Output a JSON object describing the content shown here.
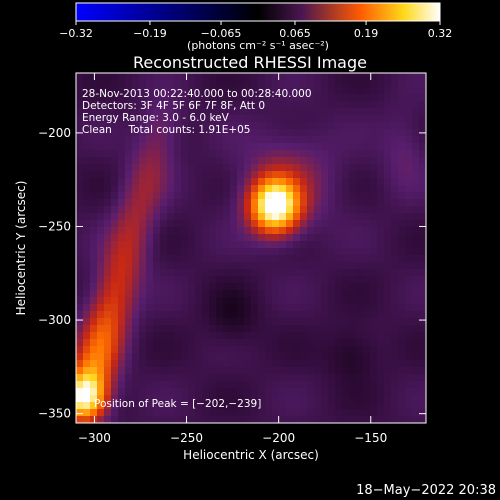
{
  "chart_data": {
    "type": "heatmap",
    "title": "Reconstructed RHESSI Image",
    "xlabel": "Heliocentric X (arcsec)",
    "ylabel": "Heliocentric Y (arcsec)",
    "xlim": [
      -310,
      -120
    ],
    "ylim": [
      -355,
      -168
    ],
    "x_ticks": [
      -300,
      -250,
      -200,
      -150
    ],
    "y_ticks": [
      -200,
      -250,
      -300,
      -350
    ],
    "x_tick_labels": [
      "−300",
      "−250",
      "−200",
      "−150"
    ],
    "y_tick_labels": [
      "−200",
      "−250",
      "−300",
      "−350"
    ],
    "colorbar": {
      "range": [
        -0.32,
        0.32
      ],
      "ticks": [
        -0.32,
        -0.19,
        -0.065,
        0.065,
        0.19,
        0.32
      ],
      "tick_labels": [
        "−0.32",
        "−0.19",
        "−0.065",
        "0.065",
        "0.19",
        "0.32"
      ],
      "unit_label": "(photons cm⁻² s⁻¹ asec⁻²)",
      "colors": [
        "#0000ff",
        "#000000",
        "#4a1650",
        "#ff5a00",
        "#ffd81a",
        "#ffffff"
      ]
    },
    "annotations": [
      "28-Nov-2013 00:22:40.000 to 00:28:40.000",
      "Detectors: 3F 4F 5F 6F 7F 8F, Att 0",
      "Energy Range: 3.0 - 6.0 keV",
      "Clean     Total counts: 1.91E+05"
    ],
    "peak_label": "Position of Peak = [−202,−239]",
    "peak_position": [
      -202,
      -239
    ],
    "sources": [
      {
        "x": -202,
        "y": -239,
        "peak": 0.32
      },
      {
        "x": -285,
        "y": -312,
        "peak": 0.16
      },
      {
        "x": -305,
        "y": -340,
        "peak": 0.26
      },
      {
        "x": -270,
        "y": -275,
        "peak": 0.11
      },
      {
        "x": -265,
        "y": -225,
        "peak": 0.09
      },
      {
        "x": -140,
        "y": -205,
        "peak": 0.05
      }
    ]
  },
  "footer": {
    "date": "18−May−2022 20:38"
  }
}
